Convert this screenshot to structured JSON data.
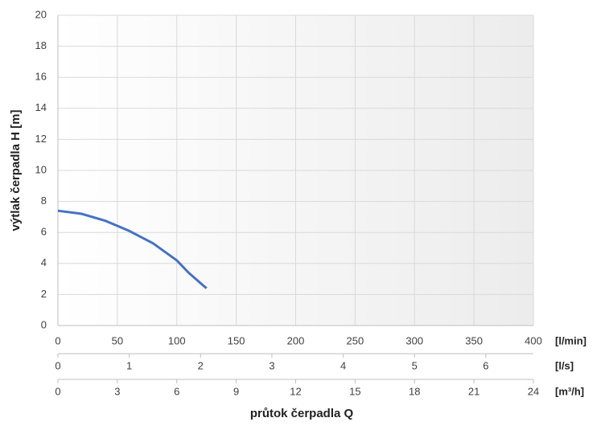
{
  "chart_data": {
    "type": "line",
    "x_label": "průtok čerpadla Q",
    "y_label": "výtlak čerpadla H [m]",
    "x_unit": "[l/min]",
    "x": [
      0,
      20,
      40,
      60,
      80,
      100,
      110,
      125
    ],
    "series": [
      {
        "name": "H",
        "color": "#4472c4",
        "values": [
          7.4,
          7.2,
          6.75,
          6.1,
          5.3,
          4.2,
          3.4,
          2.4
        ]
      }
    ],
    "xlim": [
      0,
      400
    ],
    "xticks": [
      0,
      50,
      100,
      150,
      200,
      250,
      300,
      350,
      400
    ],
    "ylim": [
      0,
      20
    ],
    "yticks": [
      0,
      2,
      4,
      6,
      8,
      10,
      12,
      14,
      16,
      18,
      20
    ],
    "grid": true,
    "secondary_x_axes": [
      {
        "unit": "[l/s]",
        "xlim": [
          0,
          6.666666666666667
        ],
        "xticks": [
          0,
          1,
          2,
          3,
          4,
          5,
          6
        ]
      },
      {
        "unit": "[m³/h]",
        "xlim": [
          0,
          24
        ],
        "xticks": [
          0,
          3,
          6,
          9,
          12,
          15,
          18,
          21,
          24
        ]
      }
    ]
  }
}
